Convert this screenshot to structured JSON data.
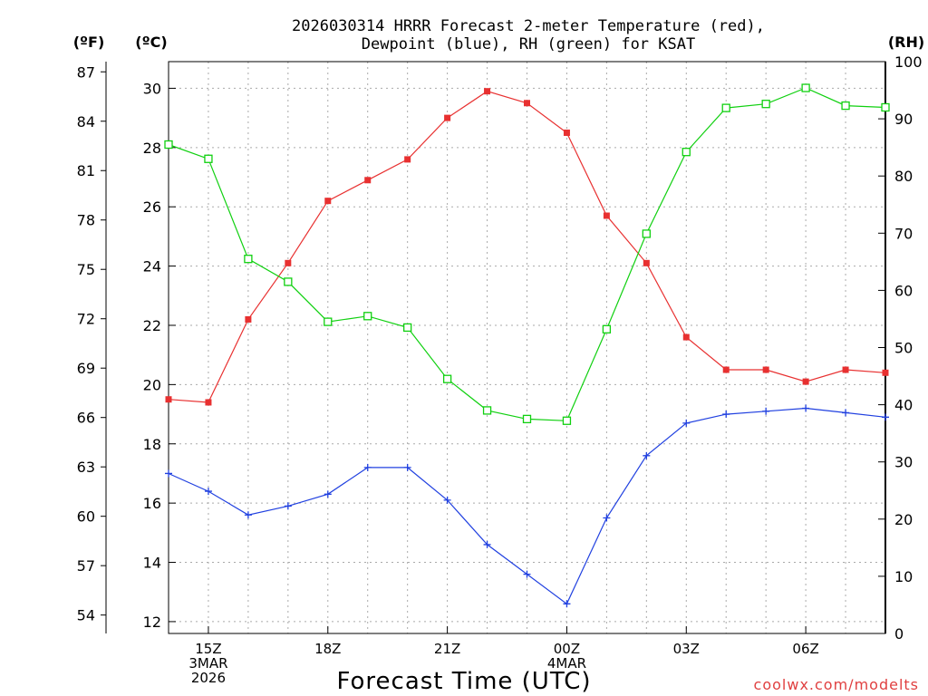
{
  "chart_data": {
    "type": "line",
    "title_lines": [
      "2026030314 HRRR Forecast 2-meter Temperature (red),",
      "Dewpoint (blue), RH (green) for KSAT"
    ],
    "xlabel": "Forecast Time (UTC)",
    "credit": "coolwx.com/modelts",
    "units": {
      "fahrenheit": "(ºF)",
      "celsius": "(ºC)",
      "rh": "(RH)"
    },
    "x": [
      14,
      15,
      16,
      17,
      18,
      19,
      20,
      21,
      22,
      23,
      24,
      25,
      26,
      27,
      28,
      29,
      30,
      31,
      32
    ],
    "xlim": [
      14,
      32
    ],
    "x_ticks": [
      {
        "x": 15,
        "lines": [
          "15Z",
          "3MAR",
          "2026"
        ]
      },
      {
        "x": 18,
        "lines": [
          "18Z"
        ]
      },
      {
        "x": 21,
        "lines": [
          "21Z"
        ]
      },
      {
        "x": 24,
        "lines": [
          "00Z",
          "4MAR"
        ]
      },
      {
        "x": 27,
        "lines": [
          "03Z"
        ]
      },
      {
        "x": 30,
        "lines": [
          "06Z"
        ]
      }
    ],
    "celsius_axis": {
      "ylim": [
        11.6,
        30.9
      ],
      "ticks": [
        "12",
        "14",
        "16",
        "18",
        "20",
        "22",
        "24",
        "26",
        "28",
        "30"
      ]
    },
    "fahrenheit_axis": {
      "ylim": [
        52.88,
        87.62
      ],
      "ticks": [
        "54",
        "57",
        "60",
        "63",
        "66",
        "69",
        "72",
        "75",
        "78",
        "81",
        "84",
        "87"
      ]
    },
    "rh_axis": {
      "ylim": [
        0,
        100
      ],
      "ticks": [
        "0",
        "10",
        "20",
        "30",
        "40",
        "50",
        "60",
        "70",
        "80",
        "90",
        "100"
      ]
    },
    "series": [
      {
        "name": "Temperature",
        "axis": "celsius",
        "color": "#e83030",
        "marker": "filled-square",
        "values": [
          19.5,
          19.4,
          22.2,
          24.1,
          26.2,
          26.9,
          27.6,
          29.0,
          29.9,
          29.5,
          28.5,
          25.7,
          24.1,
          21.6,
          20.5,
          20.5,
          20.1,
          20.5,
          20.4
        ]
      },
      {
        "name": "Dewpoint",
        "axis": "celsius",
        "color": "#2040e0",
        "marker": "plus",
        "values": [
          17.0,
          16.4,
          15.6,
          15.9,
          16.3,
          17.2,
          17.2,
          16.1,
          14.6,
          13.6,
          12.6,
          15.5,
          17.6,
          18.7,
          19.0,
          19.1,
          19.2,
          19.05,
          18.9
        ]
      },
      {
        "name": "RH",
        "axis": "rh",
        "color": "#10d010",
        "marker": "open-square",
        "values": [
          85.5,
          83.0,
          65.5,
          61.5,
          54.5,
          55.5,
          53.5,
          44.5,
          39.0,
          37.5,
          37.2,
          53.2,
          69.9,
          84.2,
          91.9,
          92.6,
          95.4,
          92.3,
          92.0
        ]
      }
    ]
  }
}
